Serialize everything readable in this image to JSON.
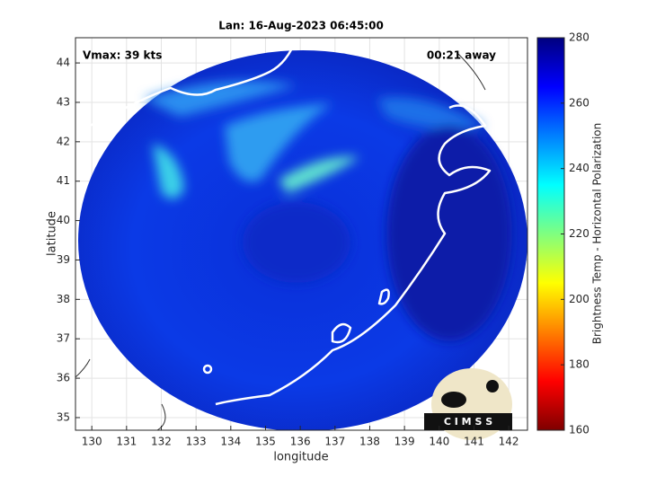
{
  "map": {
    "title": "Lan: 16-Aug-2023 06:45:00",
    "annotations": [
      "Vmax: 39 kts",
      "00:21 away"
    ],
    "xlabel": "longitude",
    "ylabel": "latitude",
    "xlim": [
      129.53,
      142.54
    ],
    "xticks": [
      130,
      131,
      132,
      133,
      134,
      135,
      136,
      137,
      138,
      139,
      140,
      141,
      142
    ],
    "ylim": [
      34.68,
      44.64
    ],
    "yticks": [
      35,
      36,
      37,
      38,
      39,
      40,
      41,
      42,
      43,
      44
    ],
    "grid": true,
    "colorbar": {
      "label": "Brightness Temp - Horizontal Polarization",
      "lim": [
        160,
        280
      ],
      "ticks": [
        160,
        180,
        200,
        220,
        240,
        260,
        280
      ]
    },
    "logo": "C I M S S"
  }
}
